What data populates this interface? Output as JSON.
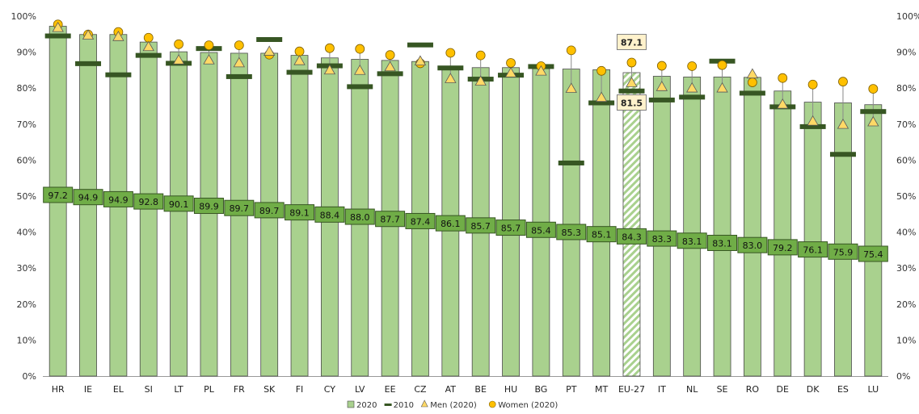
{
  "chart_data": {
    "type": "bar",
    "title": "",
    "xlabel": "",
    "ylabel": "",
    "ylim": [
      0,
      100
    ],
    "y_ticks": [
      "0%",
      "10%",
      "20%",
      "30%",
      "40%",
      "50%",
      "60%",
      "70%",
      "80%",
      "90%",
      "100%"
    ],
    "grid": false,
    "legend_position": "bottom",
    "categories": [
      "HR",
      "IE",
      "EL",
      "SI",
      "LT",
      "PL",
      "FR",
      "SK",
      "FI",
      "CY",
      "LV",
      "EE",
      "CZ",
      "AT",
      "BE",
      "HU",
      "BG",
      "PT",
      "MT",
      "EU-27",
      "IT",
      "NL",
      "SE",
      "RO",
      "DE",
      "DK",
      "ES",
      "LU"
    ],
    "series": [
      {
        "name": "2020",
        "marker": "bar",
        "color": "#a9d18e",
        "values": [
          97.2,
          94.9,
          94.9,
          92.8,
          90.1,
          89.9,
          89.7,
          89.7,
          89.1,
          88.4,
          88.0,
          87.7,
          87.4,
          86.1,
          85.7,
          85.7,
          85.4,
          85.3,
          85.1,
          84.3,
          83.3,
          83.1,
          83.1,
          83.0,
          79.2,
          76.1,
          75.9,
          75.4
        ],
        "data_labels": [
          "97.2",
          "94.9",
          "94.9",
          "92.8",
          "90.1",
          "89.9",
          "89.7",
          "89.7",
          "89.1",
          "88.4",
          "88.0",
          "87.7",
          "87.4",
          "86.1",
          "85.7",
          "85.7",
          "85.4",
          "85.3",
          "85.1",
          "84.3",
          "83.3",
          "83.1",
          "83.1",
          "83.0",
          "79.2",
          "76.1",
          "75.9",
          "75.4"
        ]
      },
      {
        "name": "2010",
        "marker": "dash",
        "color": "#375623",
        "values": [
          94.5,
          86.8,
          83.7,
          89.1,
          86.9,
          91.0,
          83.2,
          93.5,
          84.4,
          86.2,
          80.4,
          84.0,
          92.0,
          85.6,
          82.5,
          83.6,
          86.0,
          59.2,
          75.9,
          79.2,
          76.7,
          77.5,
          87.5,
          78.6,
          74.8,
          69.3,
          61.6,
          73.5
        ]
      },
      {
        "name": "Men (2020)",
        "marker": "triangle",
        "color": "#ffd966",
        "values": [
          96.8,
          94.7,
          94.3,
          91.5,
          87.8,
          87.8,
          87.0,
          90.2,
          87.6,
          85.0,
          84.9,
          85.9,
          87.5,
          82.6,
          81.9,
          84.2,
          84.7,
          79.9,
          77.4,
          81.5,
          80.4,
          80.0,
          80.0,
          83.9,
          75.5,
          70.8,
          69.9,
          70.6
        ]
      },
      {
        "name": "Women (2020)",
        "marker": "circle",
        "color": "#ffc000",
        "values": [
          97.7,
          94.9,
          95.6,
          94.0,
          92.2,
          91.9,
          91.9,
          89.3,
          90.2,
          91.1,
          90.9,
          89.2,
          86.9,
          89.8,
          89.1,
          87.0,
          86.1,
          90.5,
          84.8,
          87.1,
          86.2,
          86.1,
          86.4,
          81.6,
          82.8,
          81.0,
          81.8,
          79.8
        ]
      }
    ],
    "highlight_category": "EU-27",
    "highlight_callouts": [
      {
        "series": "Women (2020)",
        "text": "87.1"
      },
      {
        "series": "Men (2020)",
        "text": "81.5"
      }
    ]
  }
}
